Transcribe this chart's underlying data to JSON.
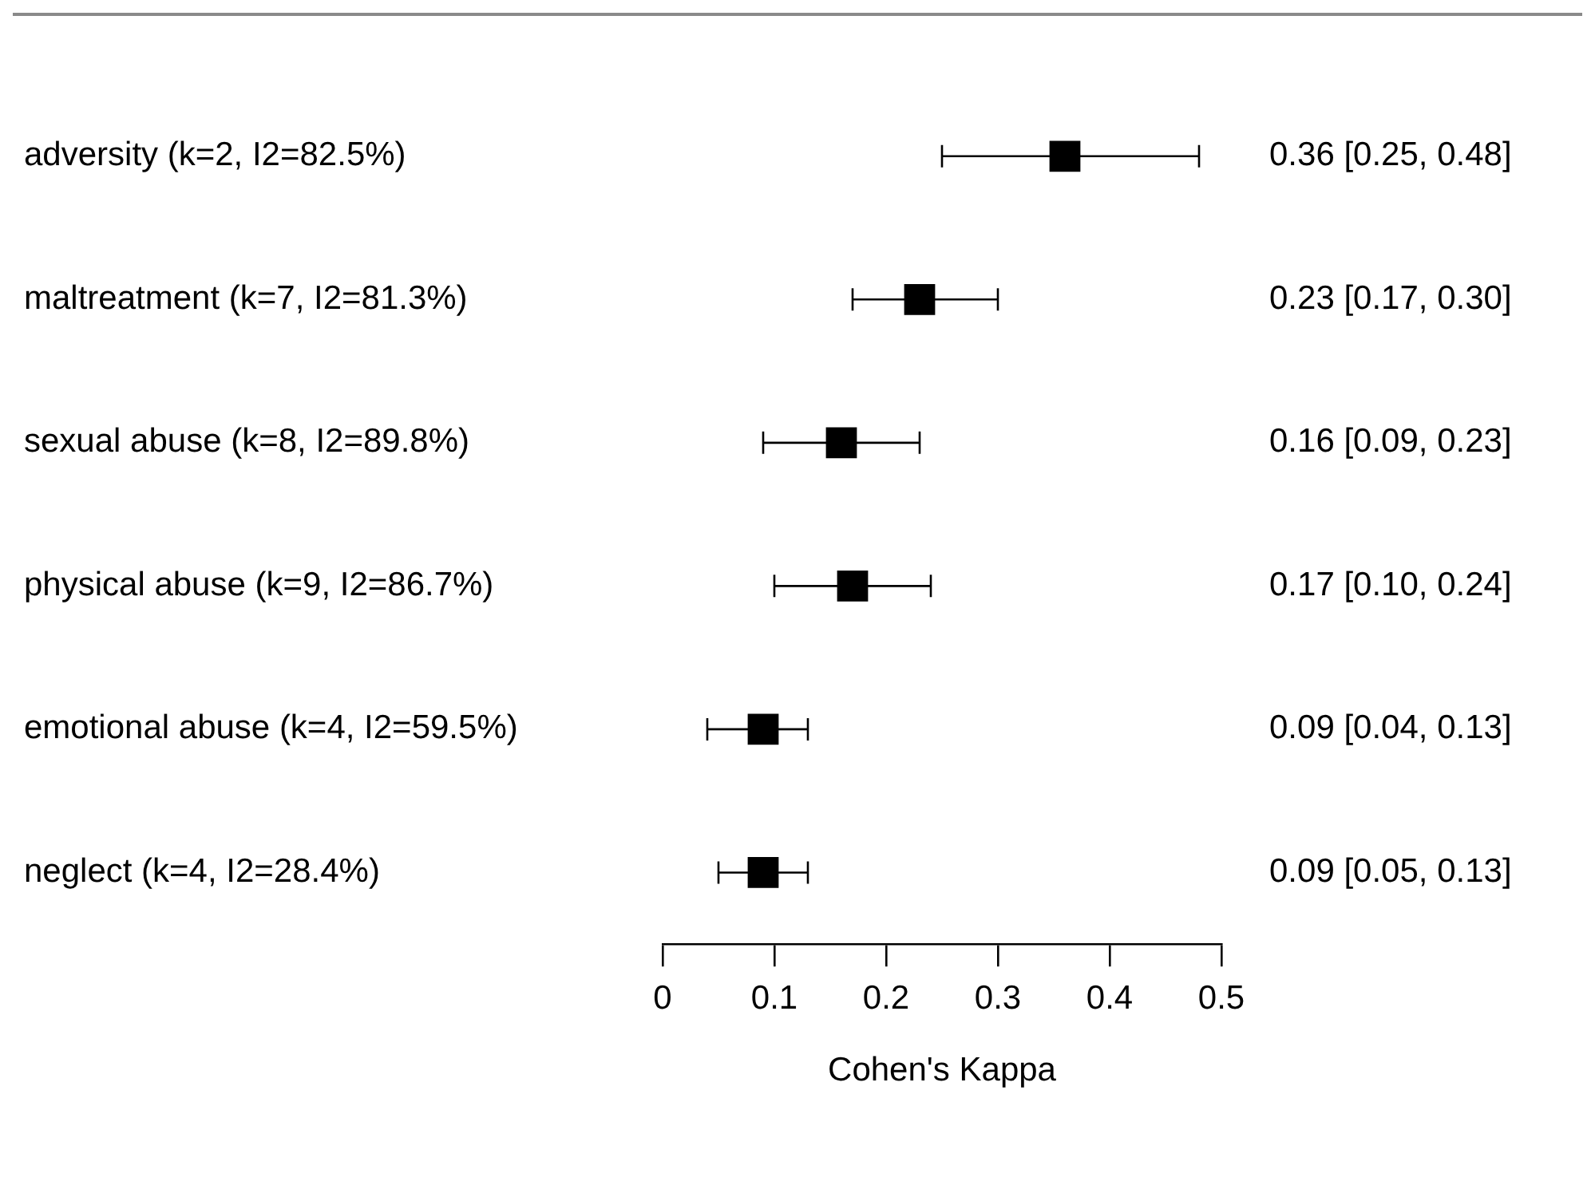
{
  "chart_data": {
    "type": "scatter",
    "orientation": "horizontal",
    "xlabel": "Cohen's Kappa",
    "categories": [
      "adversity (k=2, I2=82.5%)",
      "maltreatment (k=7, I2=81.3%)",
      "sexual abuse (k=8, I2=89.8%)",
      "physical abuse (k=9, I2=86.7%)",
      "emotional abuse (k=4, I2=59.5%)",
      "neglect (k=4, I2=28.4%)"
    ],
    "values": [
      0.36,
      0.23,
      0.16,
      0.17,
      0.09,
      0.09
    ],
    "errors": [
      [
        0.25,
        0.48
      ],
      [
        0.17,
        0.3
      ],
      [
        0.09,
        0.23
      ],
      [
        0.1,
        0.24
      ],
      [
        0.04,
        0.13
      ],
      [
        0.05,
        0.13
      ]
    ],
    "value_labels": [
      "0.36 [0.25, 0.48]",
      "0.23 [0.17, 0.30]",
      "0.16 [0.09, 0.23]",
      "0.17 [0.10, 0.24]",
      "0.09 [0.04, 0.13]",
      "0.09 [0.05, 0.13]"
    ],
    "color": "#000000",
    "marker": "square",
    "xlim": [
      0,
      0.5
    ],
    "xticks": [
      0,
      0.1,
      0.2,
      0.3,
      0.4,
      0.5
    ],
    "grid": false,
    "legend": false
  }
}
